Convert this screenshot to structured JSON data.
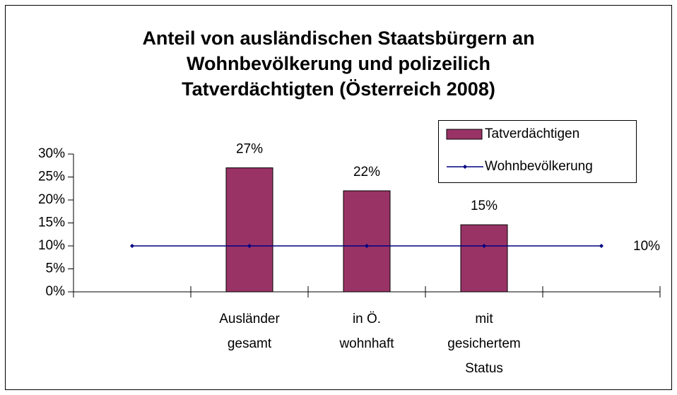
{
  "chart_data": {
    "type": "bar",
    "title": "Anteil von ausländischen Staatsbürgern an\nWohnbevölkerung und polizeilich\nTatverdächtigten (Österreich 2008)",
    "categories": [
      null,
      "Ausländer\ngesamt",
      "in Ö.\nwohnhaft",
      "mit\ngesichertem\nStatus",
      null
    ],
    "series": [
      {
        "name": "Tatverdächtigen",
        "type": "bar",
        "color": "#993366",
        "values": [
          null,
          27,
          22,
          14.6,
          null
        ],
        "value_labels": [
          null,
          "27%",
          "22%",
          "15%",
          null
        ]
      },
      {
        "name": "Wohnbevölkerung",
        "type": "line",
        "color": "#000080",
        "values": [
          10,
          10,
          10,
          10,
          10
        ],
        "value_labels": [
          null,
          null,
          null,
          null,
          "10%"
        ]
      }
    ],
    "ylim": [
      0,
      30
    ],
    "yticks": [
      {
        "value": 0,
        "label": "0%"
      },
      {
        "value": 5,
        "label": "5%"
      },
      {
        "value": 10,
        "label": "10%"
      },
      {
        "value": 15,
        "label": "15%"
      },
      {
        "value": 20,
        "label": "20%"
      },
      {
        "value": 25,
        "label": "25%"
      },
      {
        "value": 30,
        "label": "30%"
      }
    ],
    "legend": "upper right"
  }
}
